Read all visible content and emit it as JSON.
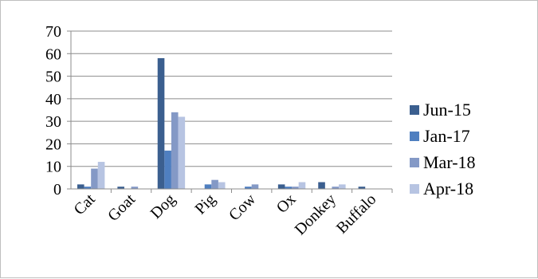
{
  "chart_data": {
    "type": "bar",
    "categories": [
      "Cat",
      "Goat",
      "Dog",
      "Pig",
      "Cow",
      "Ox",
      "Donkey",
      "Buffalo"
    ],
    "series": [
      {
        "name": "Jun-15",
        "color": "#3b5f8f",
        "values": [
          2,
          1,
          58,
          0,
          0,
          2,
          3,
          1
        ]
      },
      {
        "name": "Jan-17",
        "color": "#4f7fc0",
        "values": [
          1,
          0,
          17,
          2,
          1,
          1,
          0,
          0
        ]
      },
      {
        "name": "Mar-18",
        "color": "#8499c6",
        "values": [
          9,
          1,
          34,
          4,
          2,
          1,
          1,
          0
        ]
      },
      {
        "name": "Apr-18",
        "color": "#b7c4e2",
        "values": [
          12,
          0,
          32,
          3,
          0,
          3,
          2,
          0
        ]
      }
    ],
    "yticks": [
      "0",
      "10",
      "20",
      "30",
      "40",
      "50",
      "60",
      "70"
    ],
    "ylim": [
      0,
      70
    ],
    "grid": true,
    "legend_position": "right"
  }
}
